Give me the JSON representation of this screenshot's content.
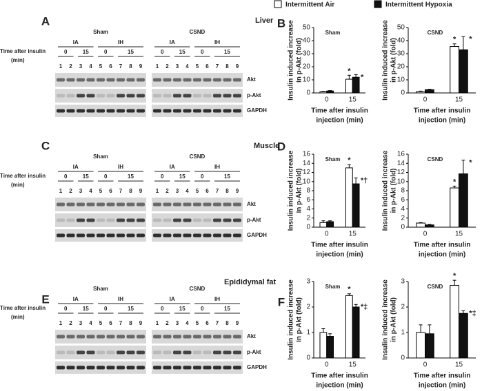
{
  "legend": [
    {
      "label": "Intermittent Air",
      "color": "#ffffff"
    },
    {
      "label": "Intermittent Hypoxia",
      "color": "#111111"
    }
  ],
  "blot_text": {
    "time": "Time after insulin",
    "unit": "(min)",
    "ia": "IA",
    "ih": "IH",
    "t0": "0",
    "t15": "15",
    "lanes": [
      "1",
      "2",
      "3",
      "4",
      "5",
      "6",
      "7",
      "8",
      "9"
    ],
    "rows": [
      "Akt",
      "p-Akt",
      "GAPDH"
    ]
  },
  "chart_text": {
    "y_label": [
      "Insulin induced increase",
      "in p-Akt (fold)"
    ],
    "x_label": [
      "Time after insulin",
      "injection (min)"
    ],
    "categories": [
      "0",
      "15"
    ]
  },
  "sections": [
    {
      "title": "Liver",
      "blot_letter": "A",
      "chart_letter": "B",
      "blots": [
        "Sham",
        "CSND"
      ],
      "charts": [
        {
          "title": "Sham",
          "ylim": [
            0,
            50
          ],
          "yticks": [
            0,
            10,
            20,
            30,
            40,
            50
          ],
          "series": [
            {
              "values": [
                1,
                10.5
              ],
              "errors": [
                0.3,
                3
              ],
              "annotations": [
                null,
                "*"
              ]
            },
            {
              "values": [
                1.5,
                12
              ],
              "errors": [
                0.3,
                2
              ],
              "annotations": [
                null,
                "*"
              ]
            }
          ]
        },
        {
          "title": "CSND",
          "ylim": [
            0,
            50
          ],
          "yticks": [
            0,
            10,
            20,
            30,
            40,
            50
          ],
          "series": [
            {
              "values": [
                1,
                35.5
              ],
              "errors": [
                0.4,
                2
              ],
              "annotations": [
                null,
                "*"
              ]
            },
            {
              "values": [
                2.5,
                33
              ],
              "errors": [
                0.3,
                10
              ],
              "annotations": [
                null,
                "*"
              ]
            }
          ]
        }
      ]
    },
    {
      "title": "Muscle",
      "blot_letter": "C",
      "chart_letter": "D",
      "blots": [
        "Sham",
        "CSND"
      ],
      "charts": [
        {
          "title": "Sham",
          "ylim": [
            0,
            16
          ],
          "yticks": [
            0,
            2,
            4,
            6,
            8,
            10,
            12,
            14,
            16
          ],
          "series": [
            {
              "values": [
                1,
                13
              ],
              "errors": [
                0.4,
                0.7
              ],
              "annotations": [
                null,
                "*"
              ]
            },
            {
              "values": [
                1.2,
                9.5
              ],
              "errors": [
                0.2,
                1.3
              ],
              "annotations": [
                null,
                "*†"
              ]
            }
          ]
        },
        {
          "title": "CSND",
          "ylim": [
            0,
            16
          ],
          "yticks": [
            0,
            2,
            4,
            6,
            8,
            10,
            12,
            14,
            16
          ],
          "series": [
            {
              "values": [
                0.9,
                8.6
              ],
              "errors": [
                0.1,
                0.4
              ],
              "annotations": [
                null,
                "*"
              ]
            },
            {
              "values": [
                0.5,
                11.7
              ],
              "errors": [
                0.1,
                3
              ],
              "annotations": [
                null,
                "*"
              ]
            }
          ]
        }
      ]
    },
    {
      "title": "Epididymal fat",
      "blot_letter": "E",
      "chart_letter": "F",
      "blots": [
        "Sham",
        "CSND"
      ],
      "charts": [
        {
          "title": "Sham",
          "ylim": [
            0,
            3
          ],
          "yticks": [
            0,
            1,
            2,
            3
          ],
          "series": [
            {
              "values": [
                1,
                2.45
              ],
              "errors": [
                0.15,
                0.07
              ],
              "annotations": [
                null,
                "*"
              ]
            },
            {
              "values": [
                0.85,
                2
              ],
              "errors": [
                0.1,
                0.1
              ],
              "annotations": [
                null,
                "*‡"
              ]
            }
          ]
        },
        {
          "title": "CSND",
          "ylim": [
            0,
            3
          ],
          "yticks": [
            0,
            1,
            2,
            3
          ],
          "series": [
            {
              "values": [
                1,
                2.85
              ],
              "errors": [
                0.3,
                0.2
              ],
              "annotations": [
                null,
                "*"
              ]
            },
            {
              "values": [
                0.95,
                1.75
              ],
              "errors": [
                0.35,
                0.1
              ],
              "annotations": [
                null,
                "*‡"
              ]
            }
          ]
        }
      ]
    }
  ]
}
